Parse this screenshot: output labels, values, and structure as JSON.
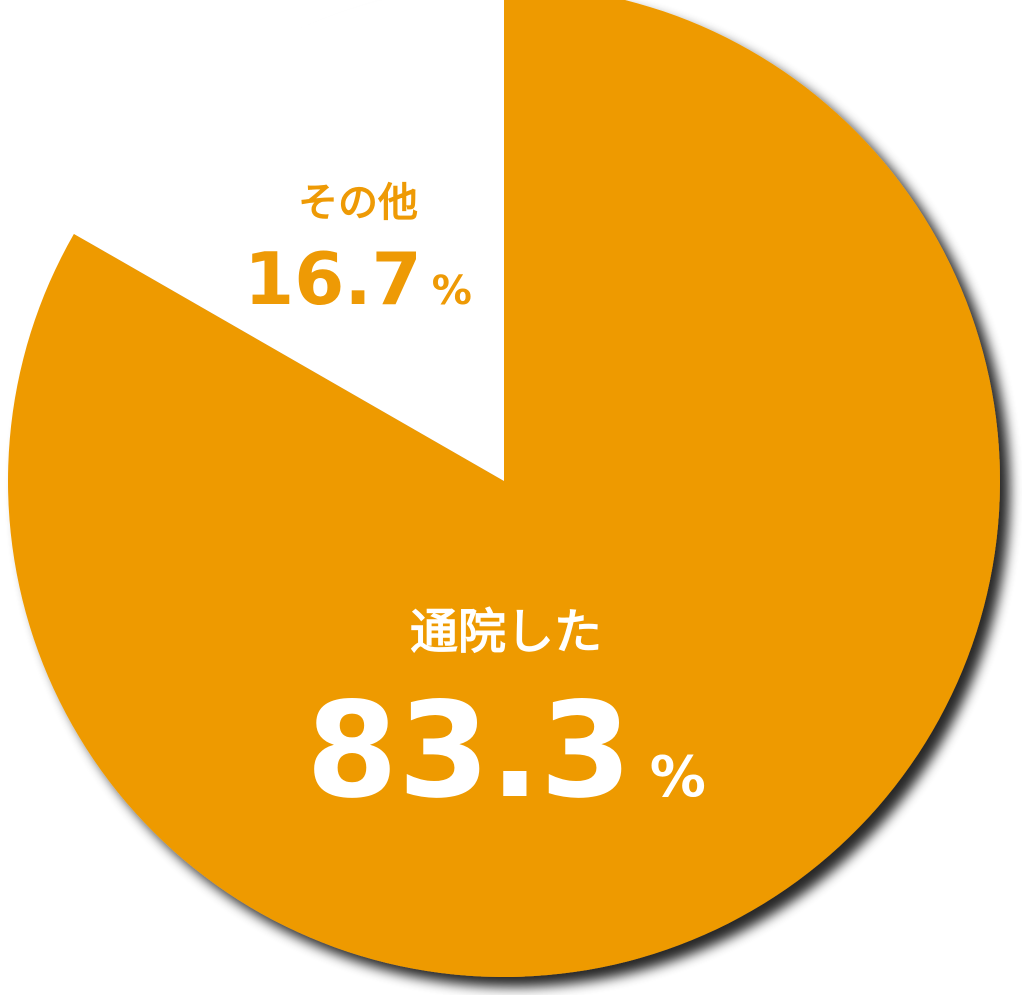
{
  "chart_data": {
    "type": "pie",
    "start": "top",
    "direction": "clockwise",
    "slices": [
      {
        "label": "通院した",
        "value": 83.3,
        "value_text": "83.3",
        "unit": "%",
        "color": "#EE9A05",
        "label_color": "#FFFFFF"
      },
      {
        "label": "その他",
        "value": 16.7,
        "value_text": "16.7",
        "unit": "%",
        "color": "#FFFFFF",
        "label_color": "#EE9A05"
      }
    ]
  }
}
